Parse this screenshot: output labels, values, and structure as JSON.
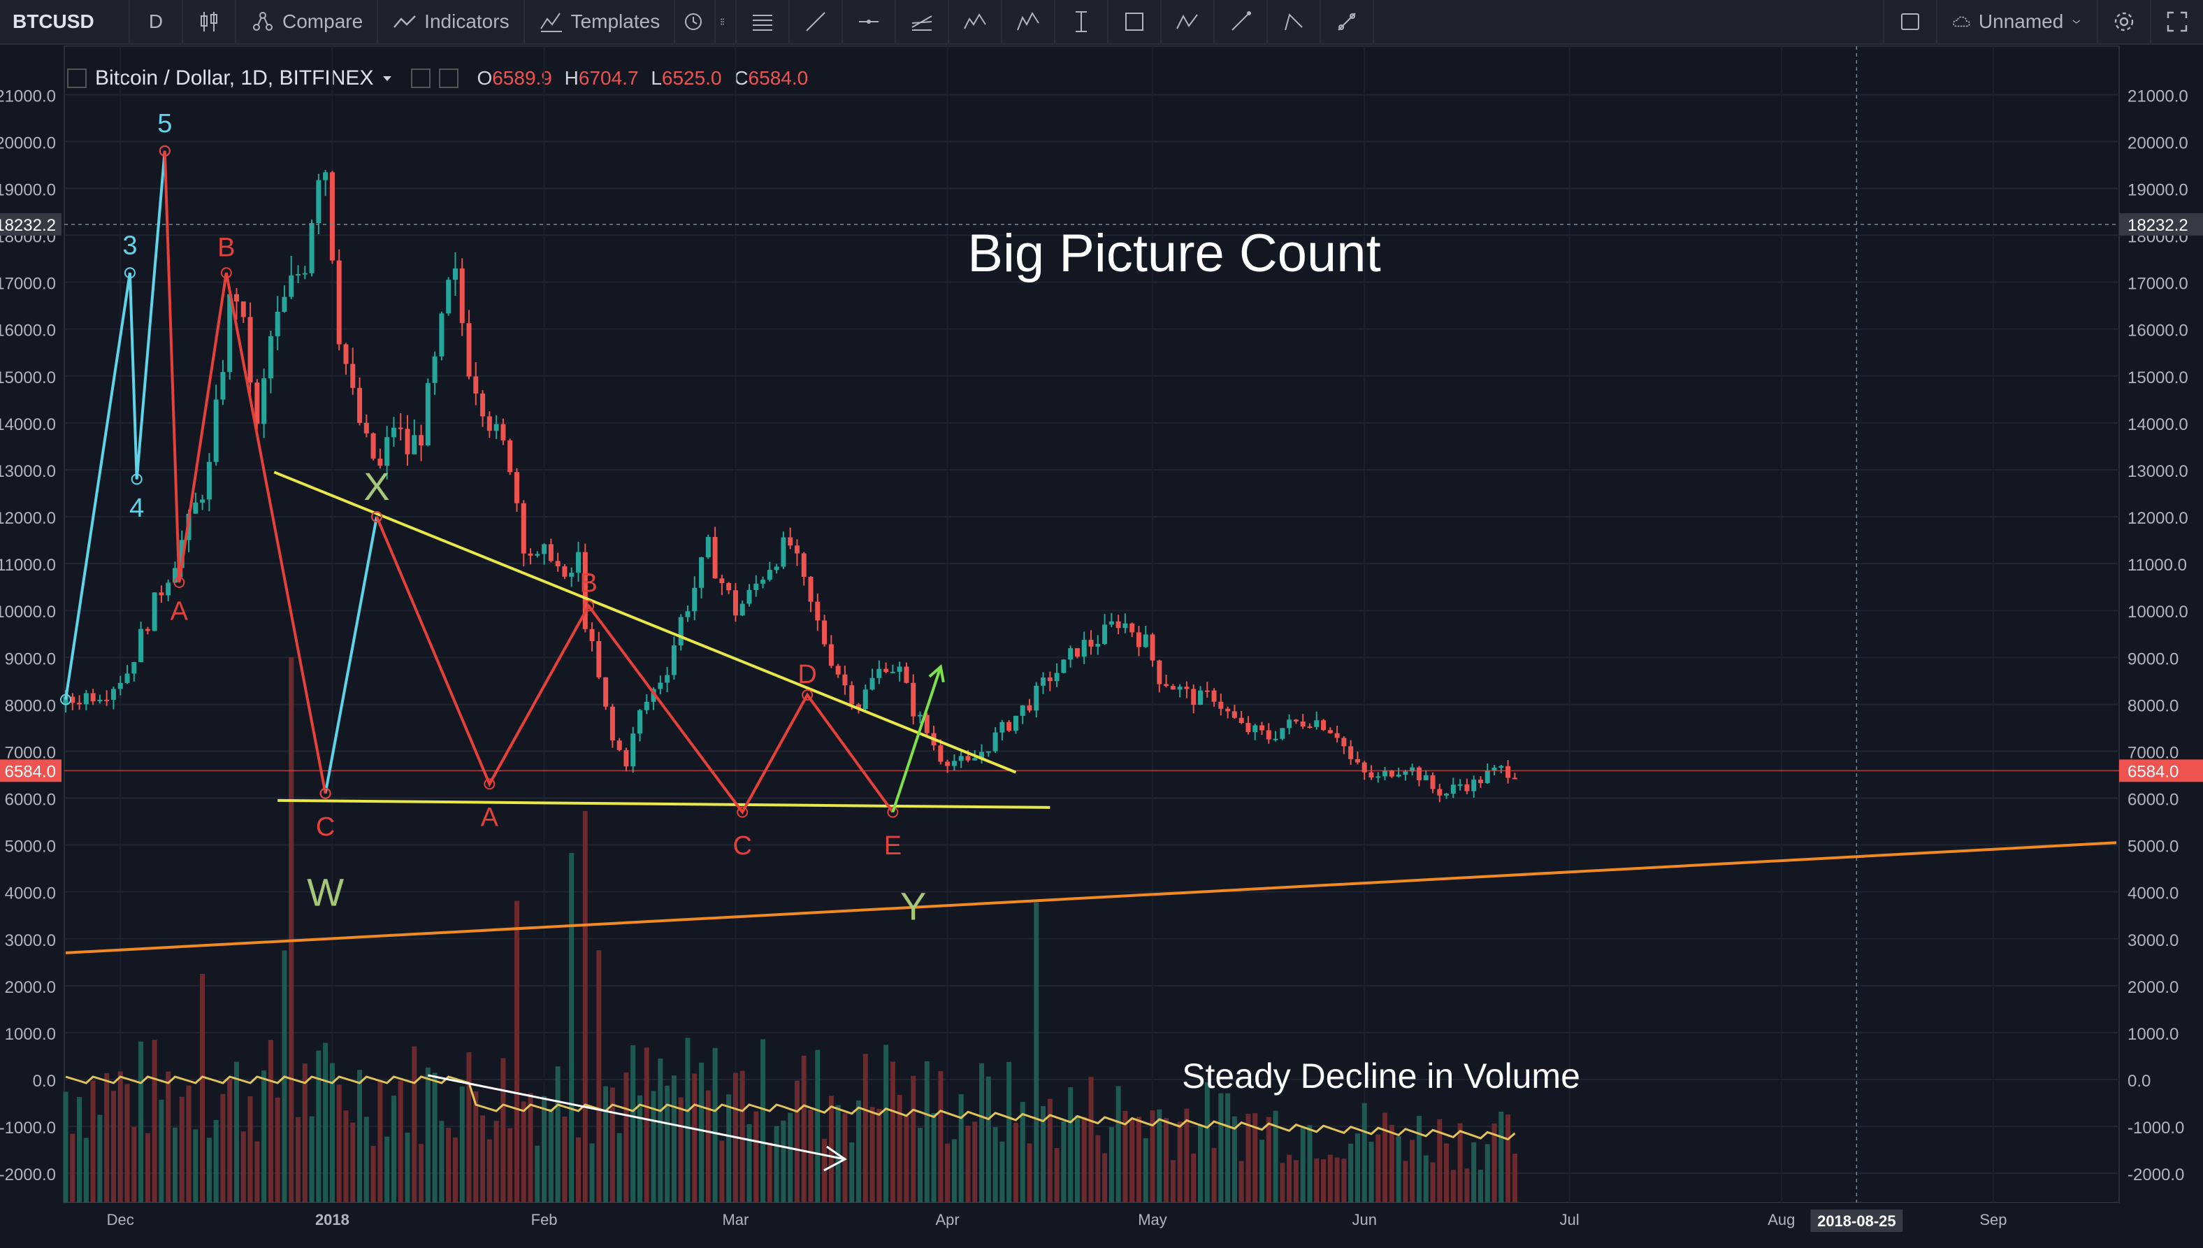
{
  "toolbar": {
    "symbol": "BTCUSD",
    "interval": "D",
    "compare_label": "Compare",
    "indicators_label": "Indicators",
    "templates_label": "Templates",
    "layout_name": "Unnamed",
    "drawing_tools": [
      "lines-tool-icon",
      "trendline-icon",
      "horizontal-line-icon",
      "pitchfork-icon",
      "pattern-icon",
      "elliott-wave-icon",
      "measure-icon",
      "rectangle-icon",
      "abcd-icon",
      "brush-icon",
      "path-icon",
      "arrow-icon"
    ]
  },
  "legend": {
    "title": "Bitcoin / Dollar, 1D, BITFINEX",
    "open_label": "O",
    "open": "6589.9",
    "high_label": "H",
    "high": "6704.7",
    "low_label": "L",
    "low": "6525.0",
    "close_label": "C",
    "close": "6584.0"
  },
  "annotations": {
    "title": "Big Picture Count",
    "volume_note": "Steady Decline in Volume"
  },
  "colors": {
    "background": "#131722",
    "up_candle": "#26a69a",
    "down_candle": "#ef5350",
    "impulse_wave": "#5fd3e8",
    "corrective_wave": "#e5403a",
    "triangle_lines": "#e8e84a",
    "support_line": "#f08a24",
    "arrow": "#7ee04a"
  },
  "chart_data": {
    "type": "candlestick",
    "symbol": "Bitcoin / Dollar, 1D, BITFINEX",
    "x_tick_labels": [
      "Dec",
      "2018",
      "Feb",
      "Mar",
      "Apr",
      "May",
      "Jun",
      "Jul",
      "Aug",
      "Sep"
    ],
    "crosshair_date": "2018-08-25",
    "ylim": [
      -2400,
      21600
    ],
    "y_ticks": [
      21000,
      20000,
      19000,
      18000,
      17000,
      16000,
      15000,
      14000,
      13000,
      12000,
      11000,
      10000,
      9000,
      8000,
      7000,
      6000,
      5000,
      4000,
      3000,
      2000,
      1000,
      0,
      -1000,
      -2000
    ],
    "y_tick_labels": [
      "21000.0",
      "20000.0",
      "19000.0",
      "18000.0",
      "17000.0",
      "16000.0",
      "15000.0",
      "14000.0",
      "13000.0",
      "12000.0",
      "11000.0",
      "10000.0",
      "9000.0",
      "8000.0",
      "7000.0",
      "6000.0",
      "5000.0",
      "4000.0",
      "3000.0",
      "2000.0",
      "1000.0",
      "0.0",
      "-1000.0",
      "-2000.0"
    ],
    "last_price": 6584.0,
    "last_price_label": "6584.0",
    "crosshair_price": 18232.2,
    "crosshair_price_label": "18232.2",
    "price_path": [
      [
        0,
        8000
      ],
      [
        3,
        8200
      ],
      [
        6,
        8300
      ],
      [
        9,
        8700
      ],
      [
        12,
        9800
      ],
      [
        15,
        10800
      ],
      [
        18,
        11800
      ],
      [
        21,
        13000
      ],
      [
        24,
        16500
      ],
      [
        25,
        16800
      ],
      [
        27,
        15000
      ],
      [
        28,
        13800
      ],
      [
        30,
        15800
      ],
      [
        33,
        16900
      ],
      [
        35,
        17500
      ],
      [
        37,
        19500
      ],
      [
        38,
        19500
      ],
      [
        40,
        16000
      ],
      [
        42,
        14500
      ],
      [
        44,
        13500
      ],
      [
        46,
        13000
      ],
      [
        48,
        14000
      ],
      [
        50,
        13400
      ],
      [
        52,
        13800
      ],
      [
        54,
        15200
      ],
      [
        56,
        16800
      ],
      [
        57,
        17000
      ],
      [
        59,
        15300
      ],
      [
        61,
        14500
      ],
      [
        63,
        13700
      ],
      [
        65,
        13200
      ],
      [
        67,
        11500
      ],
      [
        69,
        11000
      ],
      [
        71,
        11300
      ],
      [
        73,
        10500
      ],
      [
        75,
        11100
      ],
      [
        76,
        9800
      ],
      [
        78,
        8500
      ],
      [
        80,
        7200
      ],
      [
        82,
        6800
      ],
      [
        84,
        7800
      ],
      [
        86,
        8300
      ],
      [
        88,
        8800
      ],
      [
        90,
        9800
      ],
      [
        92,
        10500
      ],
      [
        94,
        11300
      ],
      [
        96,
        10600
      ],
      [
        98,
        10000
      ],
      [
        100,
        10300
      ],
      [
        102,
        10800
      ],
      [
        104,
        11200
      ],
      [
        106,
        11400
      ],
      [
        108,
        10500
      ],
      [
        110,
        9700
      ],
      [
        112,
        9000
      ],
      [
        114,
        8400
      ],
      [
        116,
        8000
      ],
      [
        118,
        8500
      ],
      [
        120,
        8900
      ],
      [
        122,
        8700
      ],
      [
        124,
        7900
      ],
      [
        126,
        7400
      ],
      [
        128,
        6900
      ],
      [
        130,
        6800
      ],
      [
        132,
        6700
      ],
      [
        134,
        7000
      ],
      [
        136,
        7300
      ],
      [
        138,
        7600
      ],
      [
        140,
        7900
      ],
      [
        142,
        8200
      ],
      [
        144,
        8600
      ],
      [
        146,
        8800
      ],
      [
        148,
        9200
      ],
      [
        150,
        9300
      ],
      [
        152,
        9500
      ],
      [
        154,
        9800
      ],
      [
        156,
        9600
      ],
      [
        158,
        9300
      ],
      [
        160,
        8600
      ],
      [
        162,
        8400
      ],
      [
        164,
        8200
      ],
      [
        166,
        8100
      ],
      [
        168,
        8200
      ],
      [
        170,
        7800
      ],
      [
        172,
        7500
      ],
      [
        174,
        7400
      ],
      [
        176,
        7300
      ],
      [
        178,
        7500
      ],
      [
        180,
        7600
      ],
      [
        182,
        7700
      ],
      [
        184,
        7600
      ],
      [
        186,
        7400
      ],
      [
        188,
        6800
      ],
      [
        190,
        6500
      ],
      [
        192,
        6400
      ],
      [
        194,
        6600
      ],
      [
        196,
        6700
      ],
      [
        198,
        6500
      ],
      [
        200,
        6200
      ],
      [
        202,
        6100
      ],
      [
        204,
        6300
      ],
      [
        206,
        6300
      ],
      [
        208,
        6500
      ],
      [
        210,
        6600
      ],
      [
        212,
        6584
      ]
    ],
    "volume_note": "Steady Decline in Volume",
    "elliott_labels": [
      "3",
      "4",
      "5",
      "A",
      "B",
      "C",
      "X",
      "A",
      "B",
      "C",
      "D",
      "E",
      "W",
      "Y"
    ]
  }
}
